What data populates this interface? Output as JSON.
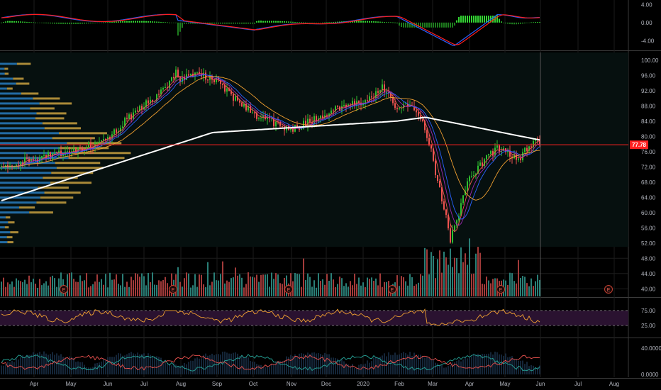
{
  "colors": {
    "background": "#000000",
    "grid": "#1c1c1c",
    "pane_border": "#3a3a3a",
    "up": "#26a69a",
    "up_candle": "#2fbf2f",
    "down": "#ef5350",
    "ma_short_1": "#2962ff",
    "ma_short_2": "#9c27b0",
    "ma_short_3": "#ef5350",
    "ma_50": "#f0a030",
    "ma_200": "#ffffff",
    "price_line": "#ff2020",
    "macd_line": "#2962ff",
    "signal_line": "#ff1e1e",
    "rsi_line": "#f0a030",
    "rsi_band": "#2a1230",
    "di_plus": "#26a69a",
    "di_minus": "#ef5350",
    "volume_profile_a": "#2a82c8",
    "volume_profile_b": "#c8a040",
    "cursor_line": "#555555"
  },
  "x_axis": {
    "labels": [
      "Apr",
      "May",
      "Jun",
      "Jul",
      "Aug",
      "Sep",
      "Oct",
      "Nov",
      "Dec",
      "2020",
      "Feb",
      "Mar",
      "Apr",
      "May",
      "Jun",
      "Jul",
      "Aug"
    ]
  },
  "price_axis": {
    "labels": [
      "100.00",
      "96.00",
      "92.00",
      "88.00",
      "84.00",
      "80.00",
      "76.00",
      "72.00",
      "68.00",
      "64.00",
      "60.00",
      "56.00",
      "52.00",
      "48.00",
      "44.00",
      "40.00"
    ],
    "current_price": "77.78",
    "range": [
      38,
      102
    ]
  },
  "macd_axis": {
    "labels": [
      "4.00",
      "0.00",
      "-4.00"
    ],
    "range": [
      -6,
      5
    ]
  },
  "rsi_axis": {
    "labels": [
      "75.00",
      "25.00"
    ],
    "upper": 70,
    "lower": 30
  },
  "adx_axis": {
    "labels": [
      "40.0000",
      "0.0000"
    ]
  },
  "earnings_marker": "E",
  "chart_data": {
    "type": "candlestick",
    "price_monthly_closes": {
      "Apr": 60,
      "May": 74,
      "Jun": 77.78,
      "Jul": 88,
      "Aug": 96,
      "Sep": 90,
      "Oct": 84,
      "Nov": 83,
      "Dec": 87,
      "2020": 88,
      "Feb": 92,
      "Mar": 86
    },
    "ma_200_start": 63,
    "ma_200_end": 79,
    "last_price": 77.78,
    "price_high": 99.5,
    "price_low": 51.5
  }
}
